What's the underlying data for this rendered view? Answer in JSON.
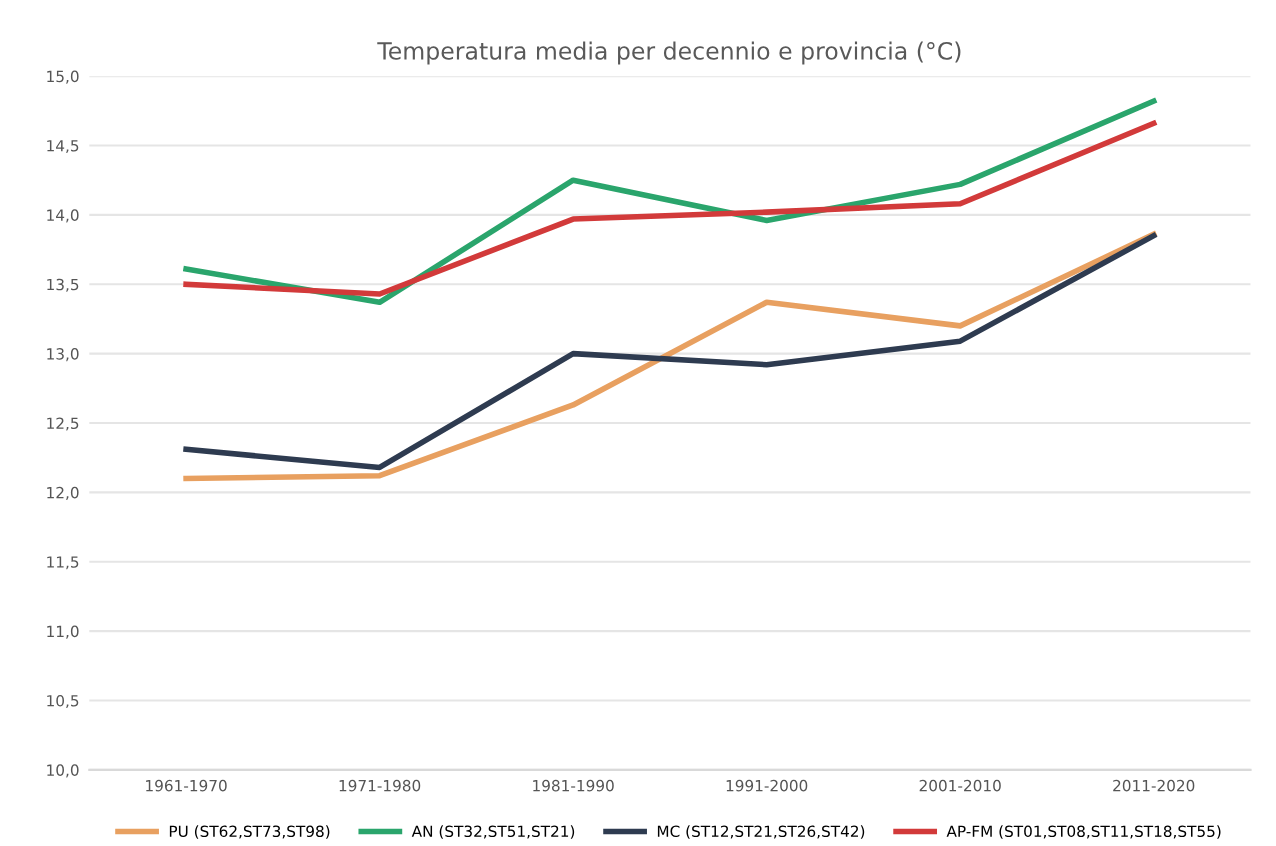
{
  "chart_data": {
    "type": "line",
    "title": "Temperatura media per decennio e provincia (°C)",
    "categories": [
      "1961-1970",
      "1971-1980",
      "1981-1990",
      "1991-2000",
      "2001-2010",
      "2011-2020"
    ],
    "series": [
      {
        "name": "PU (ST62,ST73,ST98)",
        "color": "#e8a060",
        "values": [
          12.1,
          12.12,
          12.63,
          13.37,
          13.2,
          13.86
        ]
      },
      {
        "name": "AN (ST32,ST51,ST21)",
        "color": "#2aa56c",
        "values": [
          13.61,
          13.37,
          14.25,
          13.96,
          14.22,
          14.82
        ]
      },
      {
        "name": "MC (ST12,ST21,ST26,ST42)",
        "color": "#2e3b50",
        "values": [
          12.31,
          12.18,
          13.0,
          12.92,
          13.09,
          13.85
        ]
      },
      {
        "name": "AP-FM (ST01,ST08,ST11,ST18,ST55)",
        "color": "#d23a3a",
        "values": [
          13.5,
          13.43,
          13.97,
          14.02,
          14.08,
          14.66
        ]
      }
    ],
    "ylim": [
      10,
      15
    ],
    "yticks": [
      {
        "value": 10,
        "label": "10,0"
      },
      {
        "value": 10.5,
        "label": "10,5"
      },
      {
        "value": 11,
        "label": "11,0"
      },
      {
        "value": 11.5,
        "label": "11,5"
      },
      {
        "value": 12,
        "label": "12,0"
      },
      {
        "value": 12.5,
        "label": "12,5"
      },
      {
        "value": 13,
        "label": "13,0"
      },
      {
        "value": 13.5,
        "label": "13,5"
      },
      {
        "value": 14,
        "label": "14,0"
      },
      {
        "value": 14.5,
        "label": "14,5"
      },
      {
        "value": 15,
        "label": "15,0"
      }
    ],
    "grid": "y",
    "legend": "bottom",
    "marker": "none",
    "line_style": "solid"
  }
}
